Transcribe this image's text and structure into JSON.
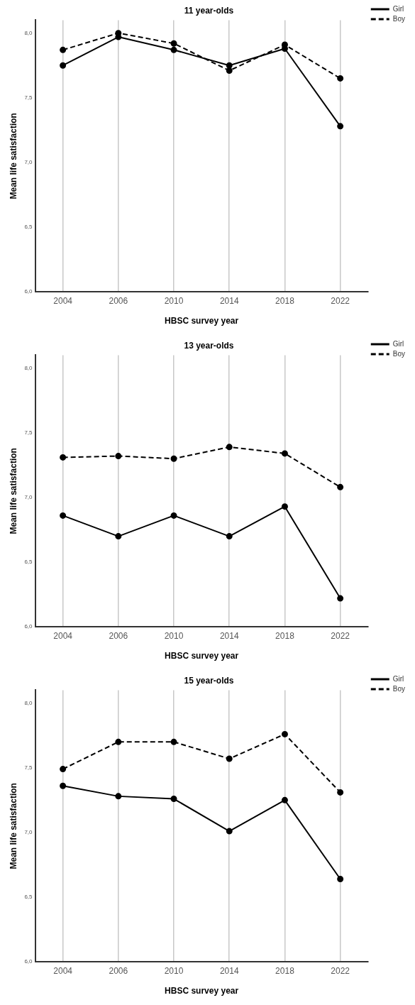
{
  "chart_data": [
    {
      "type": "line",
      "title": "11 year-olds",
      "xlabel": "HBSC survey year",
      "ylabel": "Mean life satisfaction",
      "categories": [
        "2004",
        "2006",
        "2010",
        "2014",
        "2018",
        "2022"
      ],
      "series": [
        {
          "name": "Girl",
          "color": "#000000",
          "line_style": "solid",
          "values": [
            7.75,
            7.97,
            7.87,
            7.75,
            7.88,
            7.28
          ]
        },
        {
          "name": "Boy",
          "color": "#000000",
          "line_style": "dashed",
          "values": [
            7.87,
            8.0,
            7.92,
            7.71,
            7.91,
            7.65
          ]
        }
      ],
      "ylim": [
        6,
        8.1
      ],
      "yticks": [
        {
          "value": 6,
          "label": "6,0"
        },
        {
          "value": 6.5,
          "label": "6,5"
        },
        {
          "value": 7,
          "label": "7,0"
        },
        {
          "value": 7.5,
          "label": "7,5"
        },
        {
          "value": 8,
          "label": "8,0"
        }
      ],
      "grid": "x",
      "legend": "top right",
      "marker": "circle"
    },
    {
      "type": "line",
      "title": "13 year-olds",
      "xlabel": "HBSC survey year",
      "ylabel": "Mean life satisfaction",
      "categories": [
        "2004",
        "2006",
        "2010",
        "2014",
        "2018",
        "2022"
      ],
      "series": [
        {
          "name": "Girl",
          "color": "#000000",
          "line_style": "solid",
          "values": [
            6.86,
            6.7,
            6.86,
            6.7,
            6.93,
            6.22
          ]
        },
        {
          "name": "Boy",
          "color": "#000000",
          "line_style": "dashed",
          "values": [
            7.31,
            7.32,
            7.3,
            7.39,
            7.34,
            7.08
          ]
        }
      ],
      "ylim": [
        6,
        8.1
      ],
      "yticks": [
        {
          "value": 6,
          "label": "6,0"
        },
        {
          "value": 6.5,
          "label": "6,5"
        },
        {
          "value": 7,
          "label": "7,0"
        },
        {
          "value": 7.5,
          "label": "7,5"
        },
        {
          "value": 8,
          "label": "8,0"
        }
      ],
      "grid": "x",
      "legend": "top right",
      "marker": "circle"
    },
    {
      "type": "line",
      "title": "15 year-olds",
      "xlabel": "HBSC survey year",
      "ylabel": "Mean life satisfaction",
      "categories": [
        "2004",
        "2006",
        "2010",
        "2014",
        "2018",
        "2022"
      ],
      "series": [
        {
          "name": "Girl",
          "color": "#000000",
          "line_style": "solid",
          "values": [
            7.36,
            7.28,
            7.26,
            7.01,
            7.25,
            6.64
          ]
        },
        {
          "name": "Boy",
          "color": "#000000",
          "line_style": "dashed",
          "values": [
            7.49,
            7.7,
            7.7,
            7.57,
            7.76,
            7.31
          ]
        }
      ],
      "ylim": [
        6,
        8.1
      ],
      "yticks": [
        {
          "value": 6,
          "label": "6,0"
        },
        {
          "value": 6.5,
          "label": "6,5"
        },
        {
          "value": 7,
          "label": "7,0"
        },
        {
          "value": 7.5,
          "label": "7,5"
        },
        {
          "value": 8,
          "label": "8,0"
        }
      ],
      "grid": "x",
      "legend": "top right",
      "marker": "circle"
    }
  ]
}
